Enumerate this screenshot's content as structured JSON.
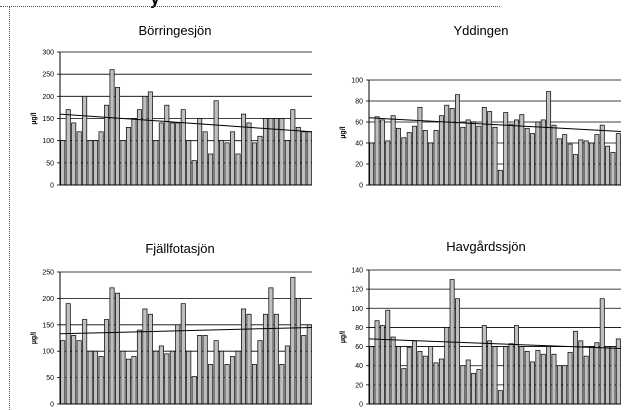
{
  "page": {
    "top_caption_fragment": "y"
  },
  "chart_data": [
    {
      "type": "bar",
      "title": "Börringesjön",
      "ylabel": "µg/l",
      "ylim": [
        0,
        300
      ],
      "yticks": [
        0,
        50,
        100,
        150,
        200,
        250,
        300
      ],
      "values": [
        100,
        170,
        140,
        120,
        200,
        100,
        100,
        120,
        180,
        260,
        220,
        100,
        130,
        150,
        170,
        200,
        210,
        100,
        140,
        180,
        140,
        140,
        170,
        100,
        55,
        150,
        120,
        70,
        190,
        100,
        95,
        120,
        70,
        160,
        140,
        95,
        110,
        150,
        150,
        150,
        150,
        100,
        170,
        130,
        120,
        120
      ],
      "trendline": [
        160,
        120
      ],
      "series_color": "#bfbfbf",
      "grid": true
    },
    {
      "type": "bar",
      "title": "Yddingen",
      "ylabel": "µg/l",
      "ylim": [
        0,
        100
      ],
      "yticks": [
        0,
        20,
        40,
        60,
        80,
        100
      ],
      "values": [
        40,
        65,
        62,
        42,
        66,
        54,
        45,
        50,
        56,
        74,
        52,
        40,
        52,
        66,
        76,
        73,
        86,
        55,
        62,
        60,
        56,
        74,
        70,
        55,
        14,
        69,
        58,
        62,
        67,
        54,
        49,
        60,
        62,
        89,
        57,
        44,
        48,
        39,
        29,
        43,
        42,
        40,
        48,
        57,
        37,
        31,
        49
      ],
      "trendline": [
        64,
        51
      ],
      "series_color": "#bfbfbf",
      "grid": true
    },
    {
      "type": "bar",
      "title": "Fjällfotasjön",
      "ylabel": "µg/l",
      "ylim": [
        0,
        250
      ],
      "yticks": [
        0,
        50,
        100,
        150,
        200,
        250
      ],
      "values": [
        120,
        190,
        130,
        120,
        160,
        100,
        100,
        90,
        160,
        220,
        210,
        100,
        85,
        90,
        140,
        180,
        170,
        100,
        110,
        95,
        100,
        150,
        190,
        100,
        52,
        130,
        130,
        75,
        120,
        100,
        75,
        90,
        100,
        180,
        170,
        75,
        120,
        170,
        220,
        170,
        75,
        110,
        240,
        200,
        130,
        150
      ],
      "trendline": [
        133,
        145
      ],
      "series_color": "#bfbfbf",
      "grid": true
    },
    {
      "type": "bar",
      "title": "Havgårdssjön",
      "ylabel": "µg/l",
      "ylim": [
        0,
        140
      ],
      "yticks": [
        0,
        20,
        40,
        60,
        80,
        100,
        120,
        140
      ],
      "values": [
        60,
        87,
        82,
        98,
        70,
        60,
        37,
        59,
        66,
        55,
        50,
        60,
        43,
        47,
        80,
        130,
        110,
        40,
        46,
        32,
        36,
        82,
        66,
        60,
        14,
        60,
        63,
        82,
        60,
        55,
        44,
        56,
        52,
        60,
        52,
        40,
        40,
        54,
        76,
        66,
        50,
        60,
        64,
        110,
        60,
        60,
        68
      ],
      "trendline": [
        68,
        58
      ],
      "series_color": "#bfbfbf",
      "grid": true
    }
  ]
}
